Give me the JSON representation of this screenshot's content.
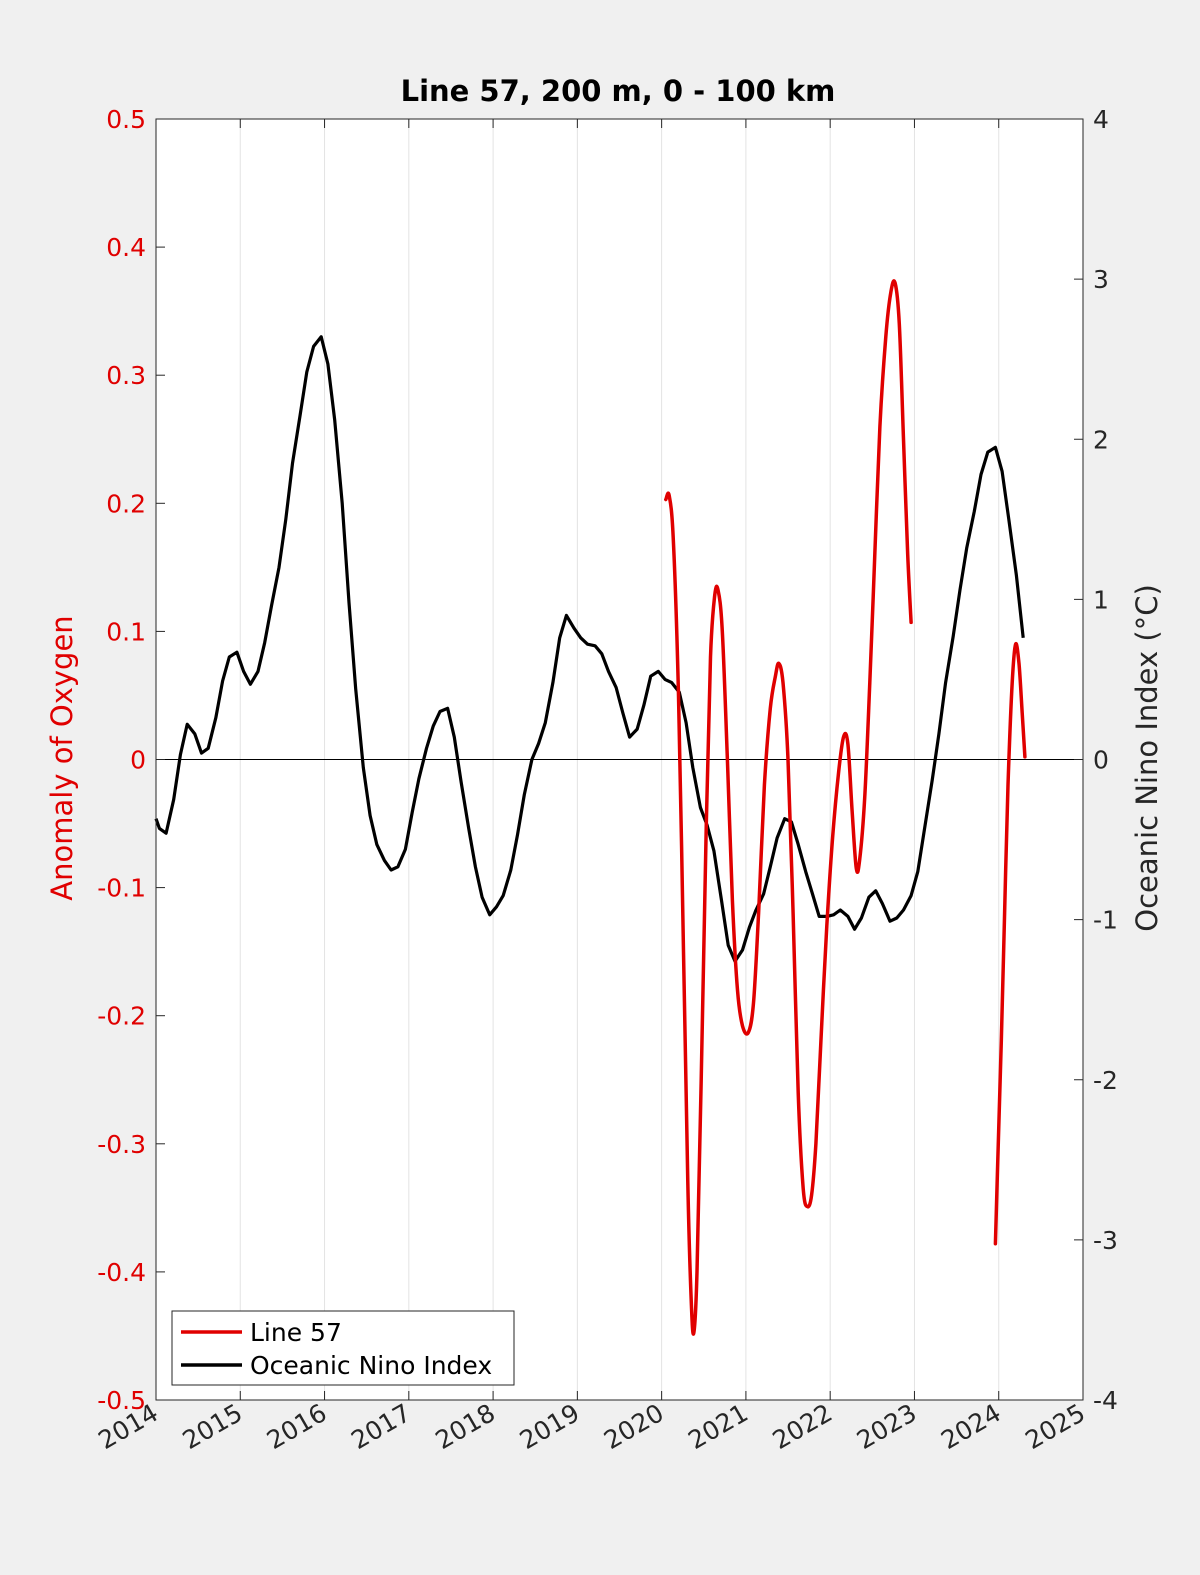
{
  "chart_data": {
    "type": "line",
    "title": "Line 57, 200 m, 0 - 100 km",
    "ylabel_left": "Anomaly of Oxygen",
    "ylabel_right": "Oceanic Nino Index (°C)",
    "xlim": [
      2014,
      2025
    ],
    "ylim_left": [
      -0.5,
      0.5
    ],
    "ylim_right": [
      -4,
      4
    ],
    "x_ticks": [
      2014,
      2015,
      2016,
      2017,
      2018,
      2019,
      2020,
      2021,
      2022,
      2023,
      2024,
      2025
    ],
    "x_tick_labels": [
      "2014",
      "2015",
      "2016",
      "2017",
      "2018",
      "2019",
      "2020",
      "2021",
      "2022",
      "2023",
      "2024",
      "2025"
    ],
    "y_ticks_left": [
      -0.5,
      -0.4,
      -0.3,
      -0.2,
      -0.1,
      0,
      0.1,
      0.2,
      0.3,
      0.4,
      0.5
    ],
    "y_tick_labels_left": [
      "-0.5",
      "-0.4",
      "-0.3",
      "-0.2",
      "-0.1",
      "0",
      "0.1",
      "0.2",
      "0.3",
      "0.4",
      "0.5"
    ],
    "y_ticks_right": [
      -4,
      -3,
      -2,
      -1,
      0,
      1,
      2,
      3,
      4
    ],
    "y_tick_labels_right": [
      "-4",
      "-3",
      "-2",
      "-1",
      "0",
      "1",
      "2",
      "3",
      "4"
    ],
    "grid": "x-only",
    "legend_position": "bottom-left",
    "colors": {
      "left_axis": "#e00000",
      "line57": "#e00000",
      "oni": "#000000"
    },
    "series": [
      {
        "name": "Line 57",
        "axis": "left",
        "color": "#e00000",
        "segments": [
          [
            [
              2020.05,
              0.203
            ],
            [
              2020.09,
              0.206
            ],
            [
              2020.14,
              0.17
            ],
            [
              2020.2,
              0.05
            ],
            [
              2020.26,
              -0.15
            ],
            [
              2020.31,
              -0.33
            ],
            [
              2020.35,
              -0.42
            ],
            [
              2020.38,
              -0.448
            ],
            [
              2020.42,
              -0.4
            ],
            [
              2020.47,
              -0.25
            ],
            [
              2020.53,
              -0.05
            ],
            [
              2020.58,
              0.08
            ],
            [
              2020.63,
              0.128
            ],
            [
              2020.67,
              0.132
            ],
            [
              2020.72,
              0.1
            ],
            [
              2020.78,
              0.0
            ],
            [
              2020.84,
              -0.11
            ],
            [
              2020.9,
              -0.18
            ],
            [
              2020.96,
              -0.208
            ],
            [
              2021.03,
              -0.213
            ],
            [
              2021.09,
              -0.19
            ],
            [
              2021.15,
              -0.12
            ],
            [
              2021.22,
              -0.02
            ],
            [
              2021.29,
              0.04
            ],
            [
              2021.35,
              0.065
            ],
            [
              2021.39,
              0.075
            ],
            [
              2021.44,
              0.06
            ],
            [
              2021.5,
              0.0
            ],
            [
              2021.56,
              -0.12
            ],
            [
              2021.62,
              -0.26
            ],
            [
              2021.68,
              -0.335
            ],
            [
              2021.73,
              -0.349
            ],
            [
              2021.78,
              -0.34
            ],
            [
              2021.83,
              -0.3
            ],
            [
              2021.89,
              -0.22
            ],
            [
              2021.96,
              -0.13
            ],
            [
              2022.03,
              -0.06
            ],
            [
              2022.1,
              -0.01
            ],
            [
              2022.16,
              0.018
            ],
            [
              2022.21,
              0.012
            ],
            [
              2022.26,
              -0.04
            ],
            [
              2022.31,
              -0.085
            ],
            [
              2022.35,
              -0.078
            ],
            [
              2022.41,
              -0.03
            ],
            [
              2022.47,
              0.06
            ],
            [
              2022.53,
              0.16
            ],
            [
              2022.59,
              0.26
            ],
            [
              2022.66,
              0.33
            ],
            [
              2022.72,
              0.365
            ],
            [
              2022.77,
              0.372
            ],
            [
              2022.82,
              0.34
            ],
            [
              2022.87,
              0.25
            ],
            [
              2022.92,
              0.16
            ],
            [
              2022.96,
              0.107
            ]
          ],
          [
            [
              2023.96,
              -0.378
            ],
            [
              2023.99,
              -0.31
            ],
            [
              2024.03,
              -0.22
            ],
            [
              2024.07,
              -0.12
            ],
            [
              2024.11,
              -0.02
            ],
            [
              2024.16,
              0.06
            ],
            [
              2024.2,
              0.09
            ],
            [
              2024.24,
              0.075
            ],
            [
              2024.28,
              0.035
            ],
            [
              2024.31,
              0.002
            ]
          ]
        ]
      },
      {
        "name": "Oceanic Nino Index",
        "axis": "right",
        "color": "#000000",
        "points": [
          [
            2014.0,
            -0.37
          ],
          [
            2014.04,
            -0.43
          ],
          [
            2014.12,
            -0.46
          ],
          [
            2014.21,
            -0.25
          ],
          [
            2014.29,
            0.03
          ],
          [
            2014.37,
            0.22
          ],
          [
            2014.46,
            0.16
          ],
          [
            2014.54,
            0.04
          ],
          [
            2014.62,
            0.07
          ],
          [
            2014.71,
            0.26
          ],
          [
            2014.79,
            0.49
          ],
          [
            2014.87,
            0.64
          ],
          [
            2014.96,
            0.67
          ],
          [
            2015.04,
            0.55
          ],
          [
            2015.12,
            0.47
          ],
          [
            2015.21,
            0.55
          ],
          [
            2015.29,
            0.73
          ],
          [
            2015.37,
            0.96
          ],
          [
            2015.46,
            1.2
          ],
          [
            2015.54,
            1.5
          ],
          [
            2015.62,
            1.85
          ],
          [
            2015.71,
            2.15
          ],
          [
            2015.79,
            2.42
          ],
          [
            2015.87,
            2.58
          ],
          [
            2015.96,
            2.64
          ],
          [
            2016.04,
            2.47
          ],
          [
            2016.12,
            2.12
          ],
          [
            2016.21,
            1.6
          ],
          [
            2016.29,
            0.98
          ],
          [
            2016.37,
            0.44
          ],
          [
            2016.46,
            -0.05
          ],
          [
            2016.54,
            -0.35
          ],
          [
            2016.62,
            -0.53
          ],
          [
            2016.71,
            -0.63
          ],
          [
            2016.79,
            -0.69
          ],
          [
            2016.87,
            -0.67
          ],
          [
            2016.96,
            -0.56
          ],
          [
            2017.04,
            -0.33
          ],
          [
            2017.12,
            -0.12
          ],
          [
            2017.21,
            0.07
          ],
          [
            2017.29,
            0.21
          ],
          [
            2017.37,
            0.3
          ],
          [
            2017.46,
            0.32
          ],
          [
            2017.54,
            0.14
          ],
          [
            2017.62,
            -0.14
          ],
          [
            2017.71,
            -0.43
          ],
          [
            2017.79,
            -0.67
          ],
          [
            2017.87,
            -0.86
          ],
          [
            2017.96,
            -0.97
          ],
          [
            2018.04,
            -0.92
          ],
          [
            2018.12,
            -0.85
          ],
          [
            2018.21,
            -0.69
          ],
          [
            2018.29,
            -0.47
          ],
          [
            2018.37,
            -0.22
          ],
          [
            2018.46,
            0.0
          ],
          [
            2018.54,
            0.1
          ],
          [
            2018.62,
            0.23
          ],
          [
            2018.71,
            0.48
          ],
          [
            2018.79,
            0.76
          ],
          [
            2018.87,
            0.9
          ],
          [
            2018.96,
            0.82
          ],
          [
            2019.04,
            0.76
          ],
          [
            2019.12,
            0.72
          ],
          [
            2019.21,
            0.71
          ],
          [
            2019.29,
            0.66
          ],
          [
            2019.37,
            0.55
          ],
          [
            2019.46,
            0.45
          ],
          [
            2019.54,
            0.29
          ],
          [
            2019.62,
            0.14
          ],
          [
            2019.71,
            0.19
          ],
          [
            2019.79,
            0.34
          ],
          [
            2019.87,
            0.52
          ],
          [
            2019.96,
            0.55
          ],
          [
            2020.04,
            0.5
          ],
          [
            2020.12,
            0.48
          ],
          [
            2020.21,
            0.42
          ],
          [
            2020.29,
            0.23
          ],
          [
            2020.37,
            -0.05
          ],
          [
            2020.46,
            -0.3
          ],
          [
            2020.54,
            -0.41
          ],
          [
            2020.62,
            -0.57
          ],
          [
            2020.71,
            -0.88
          ],
          [
            2020.79,
            -1.16
          ],
          [
            2020.87,
            -1.26
          ],
          [
            2020.96,
            -1.19
          ],
          [
            2021.04,
            -1.05
          ],
          [
            2021.12,
            -0.94
          ],
          [
            2021.21,
            -0.84
          ],
          [
            2021.29,
            -0.67
          ],
          [
            2021.37,
            -0.49
          ],
          [
            2021.46,
            -0.37
          ],
          [
            2021.54,
            -0.39
          ],
          [
            2021.62,
            -0.53
          ],
          [
            2021.71,
            -0.7
          ],
          [
            2021.79,
            -0.84
          ],
          [
            2021.87,
            -0.98
          ],
          [
            2021.96,
            -0.98
          ],
          [
            2022.04,
            -0.97
          ],
          [
            2022.12,
            -0.94
          ],
          [
            2022.21,
            -0.98
          ],
          [
            2022.29,
            -1.06
          ],
          [
            2022.37,
            -0.99
          ],
          [
            2022.46,
            -0.86
          ],
          [
            2022.54,
            -0.82
          ],
          [
            2022.62,
            -0.9
          ],
          [
            2022.71,
            -1.01
          ],
          [
            2022.79,
            -0.99
          ],
          [
            2022.87,
            -0.94
          ],
          [
            2022.96,
            -0.85
          ],
          [
            2023.04,
            -0.7
          ],
          [
            2023.12,
            -0.43
          ],
          [
            2023.21,
            -0.13
          ],
          [
            2023.29,
            0.16
          ],
          [
            2023.37,
            0.48
          ],
          [
            2023.46,
            0.77
          ],
          [
            2023.54,
            1.06
          ],
          [
            2023.62,
            1.32
          ],
          [
            2023.71,
            1.55
          ],
          [
            2023.79,
            1.78
          ],
          [
            2023.87,
            1.92
          ],
          [
            2023.96,
            1.95
          ],
          [
            2024.04,
            1.8
          ],
          [
            2024.12,
            1.5
          ],
          [
            2024.21,
            1.15
          ],
          [
            2024.29,
            0.76
          ]
        ]
      }
    ]
  }
}
